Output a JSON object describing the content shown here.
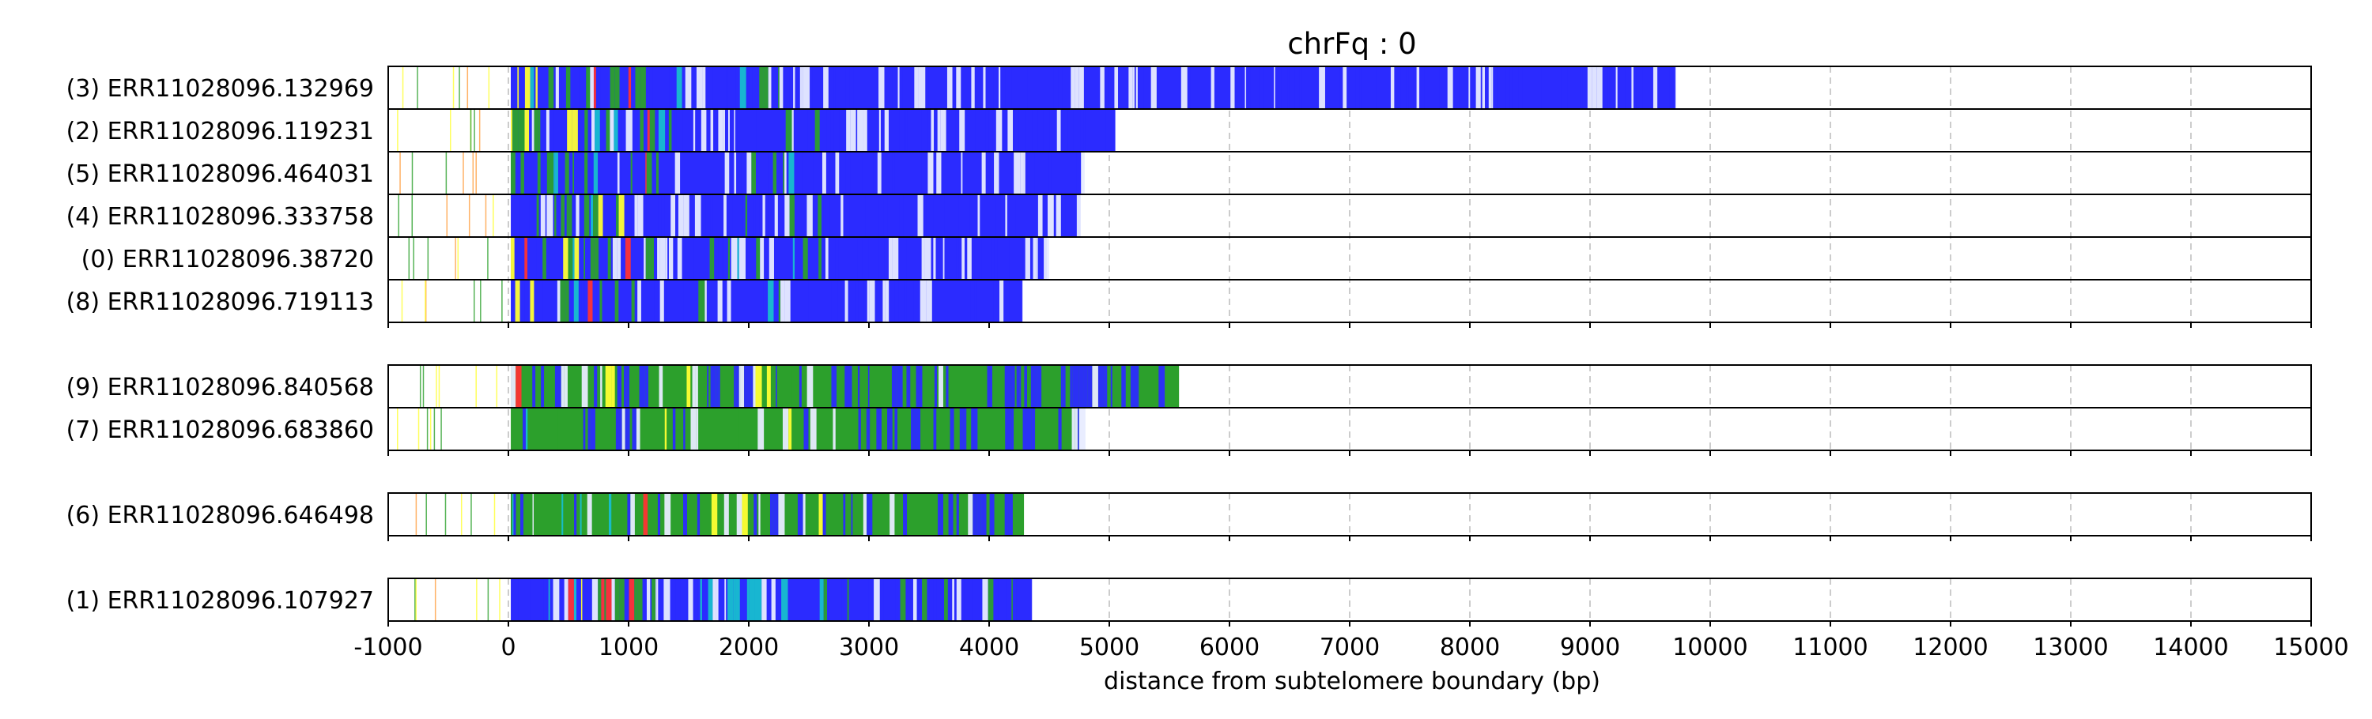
{
  "chart_data": {
    "type": "stacked-horizontal-tracks",
    "title": "chrFq : 0",
    "xlabel": "distance from subtelomere boundary (bp)",
    "xlim": [
      -1000,
      15000
    ],
    "xticks": [
      -1000,
      0,
      1000,
      2000,
      3000,
      4000,
      5000,
      6000,
      7000,
      8000,
      9000,
      10000,
      11000,
      12000,
      13000,
      14000,
      15000
    ],
    "grid": "vertical dashed at each x tick",
    "colors": {
      "blue": "#2b2bff",
      "green": "#2ca02c",
      "yellow": "#ffff33",
      "cyan": "#17becf",
      "red": "#ff3333",
      "orange": "#ff9f40",
      "light": "#e8ecff"
    },
    "groups": [
      {
        "reads": [
          {
            "label": "(3) ERR11028096.132969",
            "end": 9700
          },
          {
            "label": "(2) ERR11028096.119231",
            "end": 5050
          },
          {
            "label": "(5) ERR11028096.464031",
            "end": 4770
          },
          {
            "label": "(4) ERR11028096.333758",
            "end": 4760
          },
          {
            "label": "(0) ERR11028096.38720",
            "end": 4480
          },
          {
            "label": "(8) ERR11028096.719113",
            "end": 4270
          }
        ]
      },
      {
        "reads": [
          {
            "label": "(9) ERR11028096.840568",
            "end": 5580
          },
          {
            "label": "(7) ERR11028096.683860",
            "end": 4750
          }
        ]
      },
      {
        "reads": [
          {
            "label": "(6) ERR11028096.646498",
            "end": 4290
          }
        ]
      },
      {
        "reads": [
          {
            "label": "(1) ERR11028096.107927",
            "end": 4350
          }
        ]
      }
    ]
  }
}
